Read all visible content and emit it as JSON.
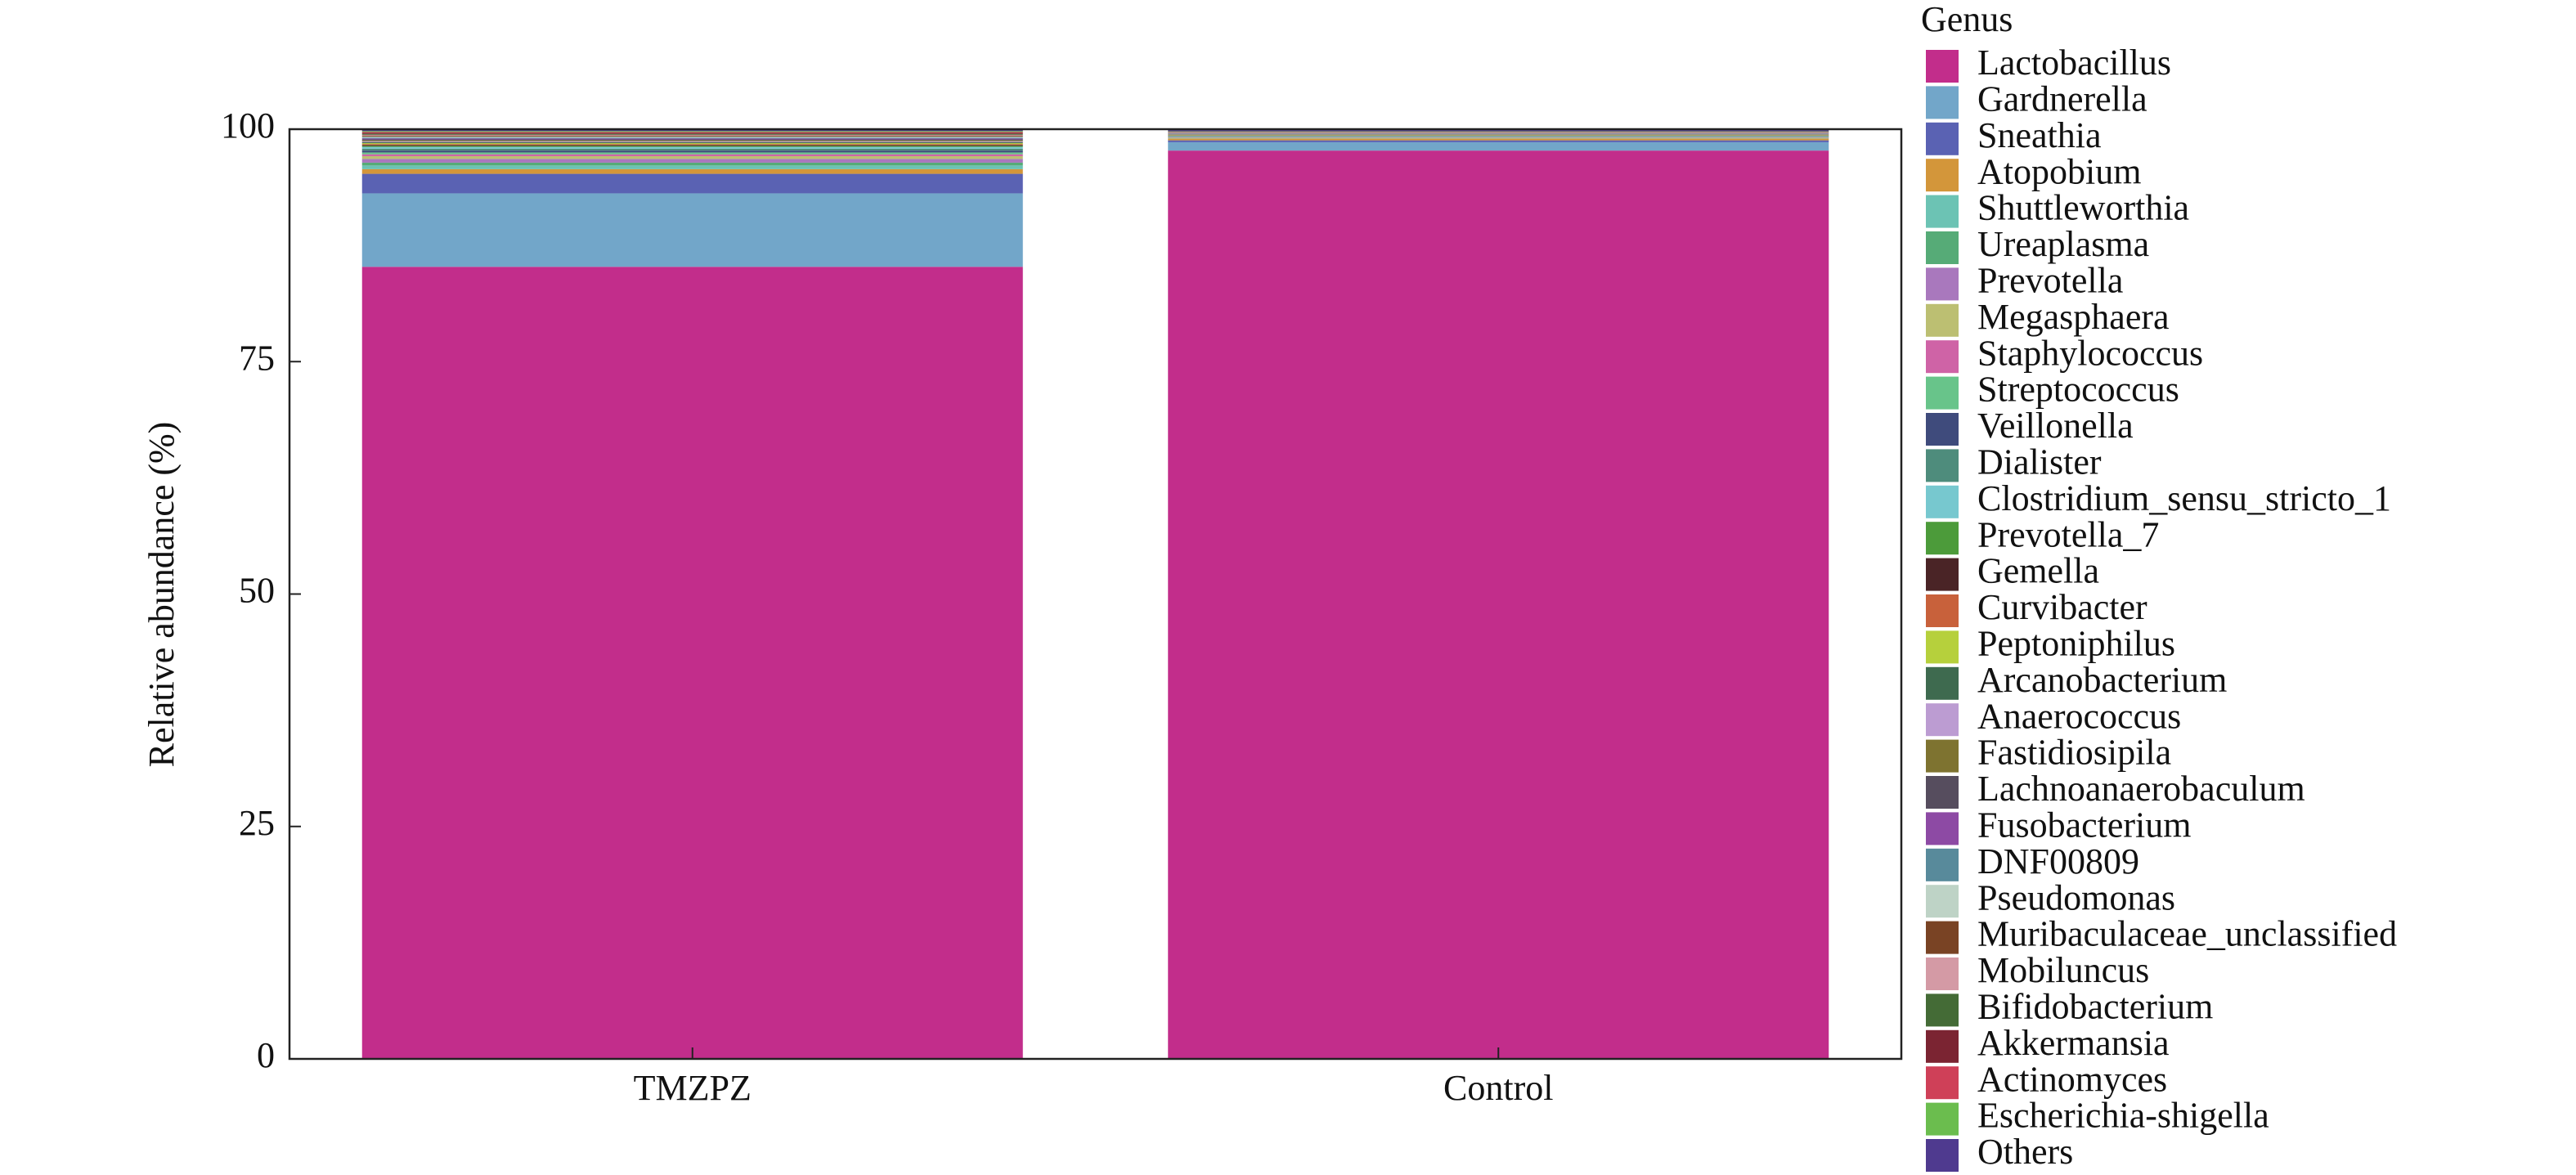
{
  "chart_data": {
    "type": "stacked_bar",
    "ylabel": "Relative abundance (%)",
    "legend_title": "Genus",
    "categories": [
      "TMZPZ",
      "Control"
    ],
    "ylim": [
      0,
      100
    ],
    "yticks": [
      0,
      25,
      50,
      75,
      100
    ],
    "series": [
      {
        "name": "Lactobacillus",
        "color": "#c22d8b",
        "values": [
          85.2,
          97.7
        ]
      },
      {
        "name": "Gardnerella",
        "color": "#72a6c9",
        "values": [
          7.9,
          0.9
        ]
      },
      {
        "name": "Sneathia",
        "color": "#5a62b3",
        "values": [
          2.1,
          0.2
        ]
      },
      {
        "name": "Atopobium",
        "color": "#d3963a",
        "values": [
          0.5,
          0.2
        ]
      },
      {
        "name": "Shuttleworthia",
        "color": "#6cc3b4",
        "values": [
          0.4,
          0.03
        ]
      },
      {
        "name": "Ureaplasma",
        "color": "#56ab77",
        "values": [
          0.3,
          0.03
        ]
      },
      {
        "name": "Prevotella",
        "color": "#a978bd",
        "values": [
          0.4,
          0.03
        ]
      },
      {
        "name": "Megasphaera",
        "color": "#bcbf72",
        "values": [
          0.3,
          0.03
        ]
      },
      {
        "name": "Staphylococcus",
        "color": "#cf63a6",
        "values": [
          0.2,
          0.03
        ]
      },
      {
        "name": "Streptococcus",
        "color": "#68c48a",
        "values": [
          0.2,
          0.03
        ]
      },
      {
        "name": "Veillonella",
        "color": "#3f4b7c",
        "values": [
          0.2,
          0.03
        ]
      },
      {
        "name": "Dialister",
        "color": "#4e8c7c",
        "values": [
          0.2,
          0.03
        ]
      },
      {
        "name": "Clostridium_sensu_stricto_1",
        "color": "#77c8cf",
        "values": [
          0.2,
          0.03
        ]
      },
      {
        "name": "Prevotella_7",
        "color": "#4c9b3a",
        "values": [
          0.1,
          0.03
        ]
      },
      {
        "name": "Gemella",
        "color": "#4a2426",
        "values": [
          0.1,
          0.03
        ]
      },
      {
        "name": "Curvibacter",
        "color": "#c8613b",
        "values": [
          0.1,
          0.03
        ]
      },
      {
        "name": "Peptoniphilus",
        "color": "#b6d03c",
        "values": [
          0.1,
          0.03
        ]
      },
      {
        "name": "Arcanobacterium",
        "color": "#3e6a4f",
        "values": [
          0.1,
          0.03
        ]
      },
      {
        "name": "Anaerococcus",
        "color": "#bc9cd2",
        "values": [
          0.1,
          0.03
        ]
      },
      {
        "name": "Fastidiosipila",
        "color": "#7e7330",
        "values": [
          0.1,
          0.03
        ]
      },
      {
        "name": "Lachnoanaerobaculum",
        "color": "#564d5e",
        "values": [
          0.1,
          0.03
        ]
      },
      {
        "name": "Fusobacterium",
        "color": "#8d4aa4",
        "values": [
          0.1,
          0.03
        ]
      },
      {
        "name": "DNF00809",
        "color": "#588a9b",
        "values": [
          0.1,
          0.03
        ]
      },
      {
        "name": "Pseudomonas",
        "color": "#bed3c6",
        "values": [
          0.1,
          0.03
        ]
      },
      {
        "name": "Muribaculaceae_unclassified",
        "color": "#794324",
        "values": [
          0.1,
          0.03
        ]
      },
      {
        "name": "Mobiluncus",
        "color": "#d49aa5",
        "values": [
          0.1,
          0.03
        ]
      },
      {
        "name": "Bifidobacterium",
        "color": "#446b36",
        "values": [
          0.1,
          0.03
        ]
      },
      {
        "name": "Akkermansia",
        "color": "#7b2432",
        "values": [
          0.1,
          0.03
        ]
      },
      {
        "name": "Actinomyces",
        "color": "#cf4058",
        "values": [
          0.1,
          0.03
        ]
      },
      {
        "name": "Escherichia-shigella",
        "color": "#6bbd4e",
        "values": [
          0.1,
          0.03
        ]
      },
      {
        "name": "Others",
        "color": "#4f3a8f",
        "values": [
          0.2,
          0.22
        ]
      }
    ]
  }
}
